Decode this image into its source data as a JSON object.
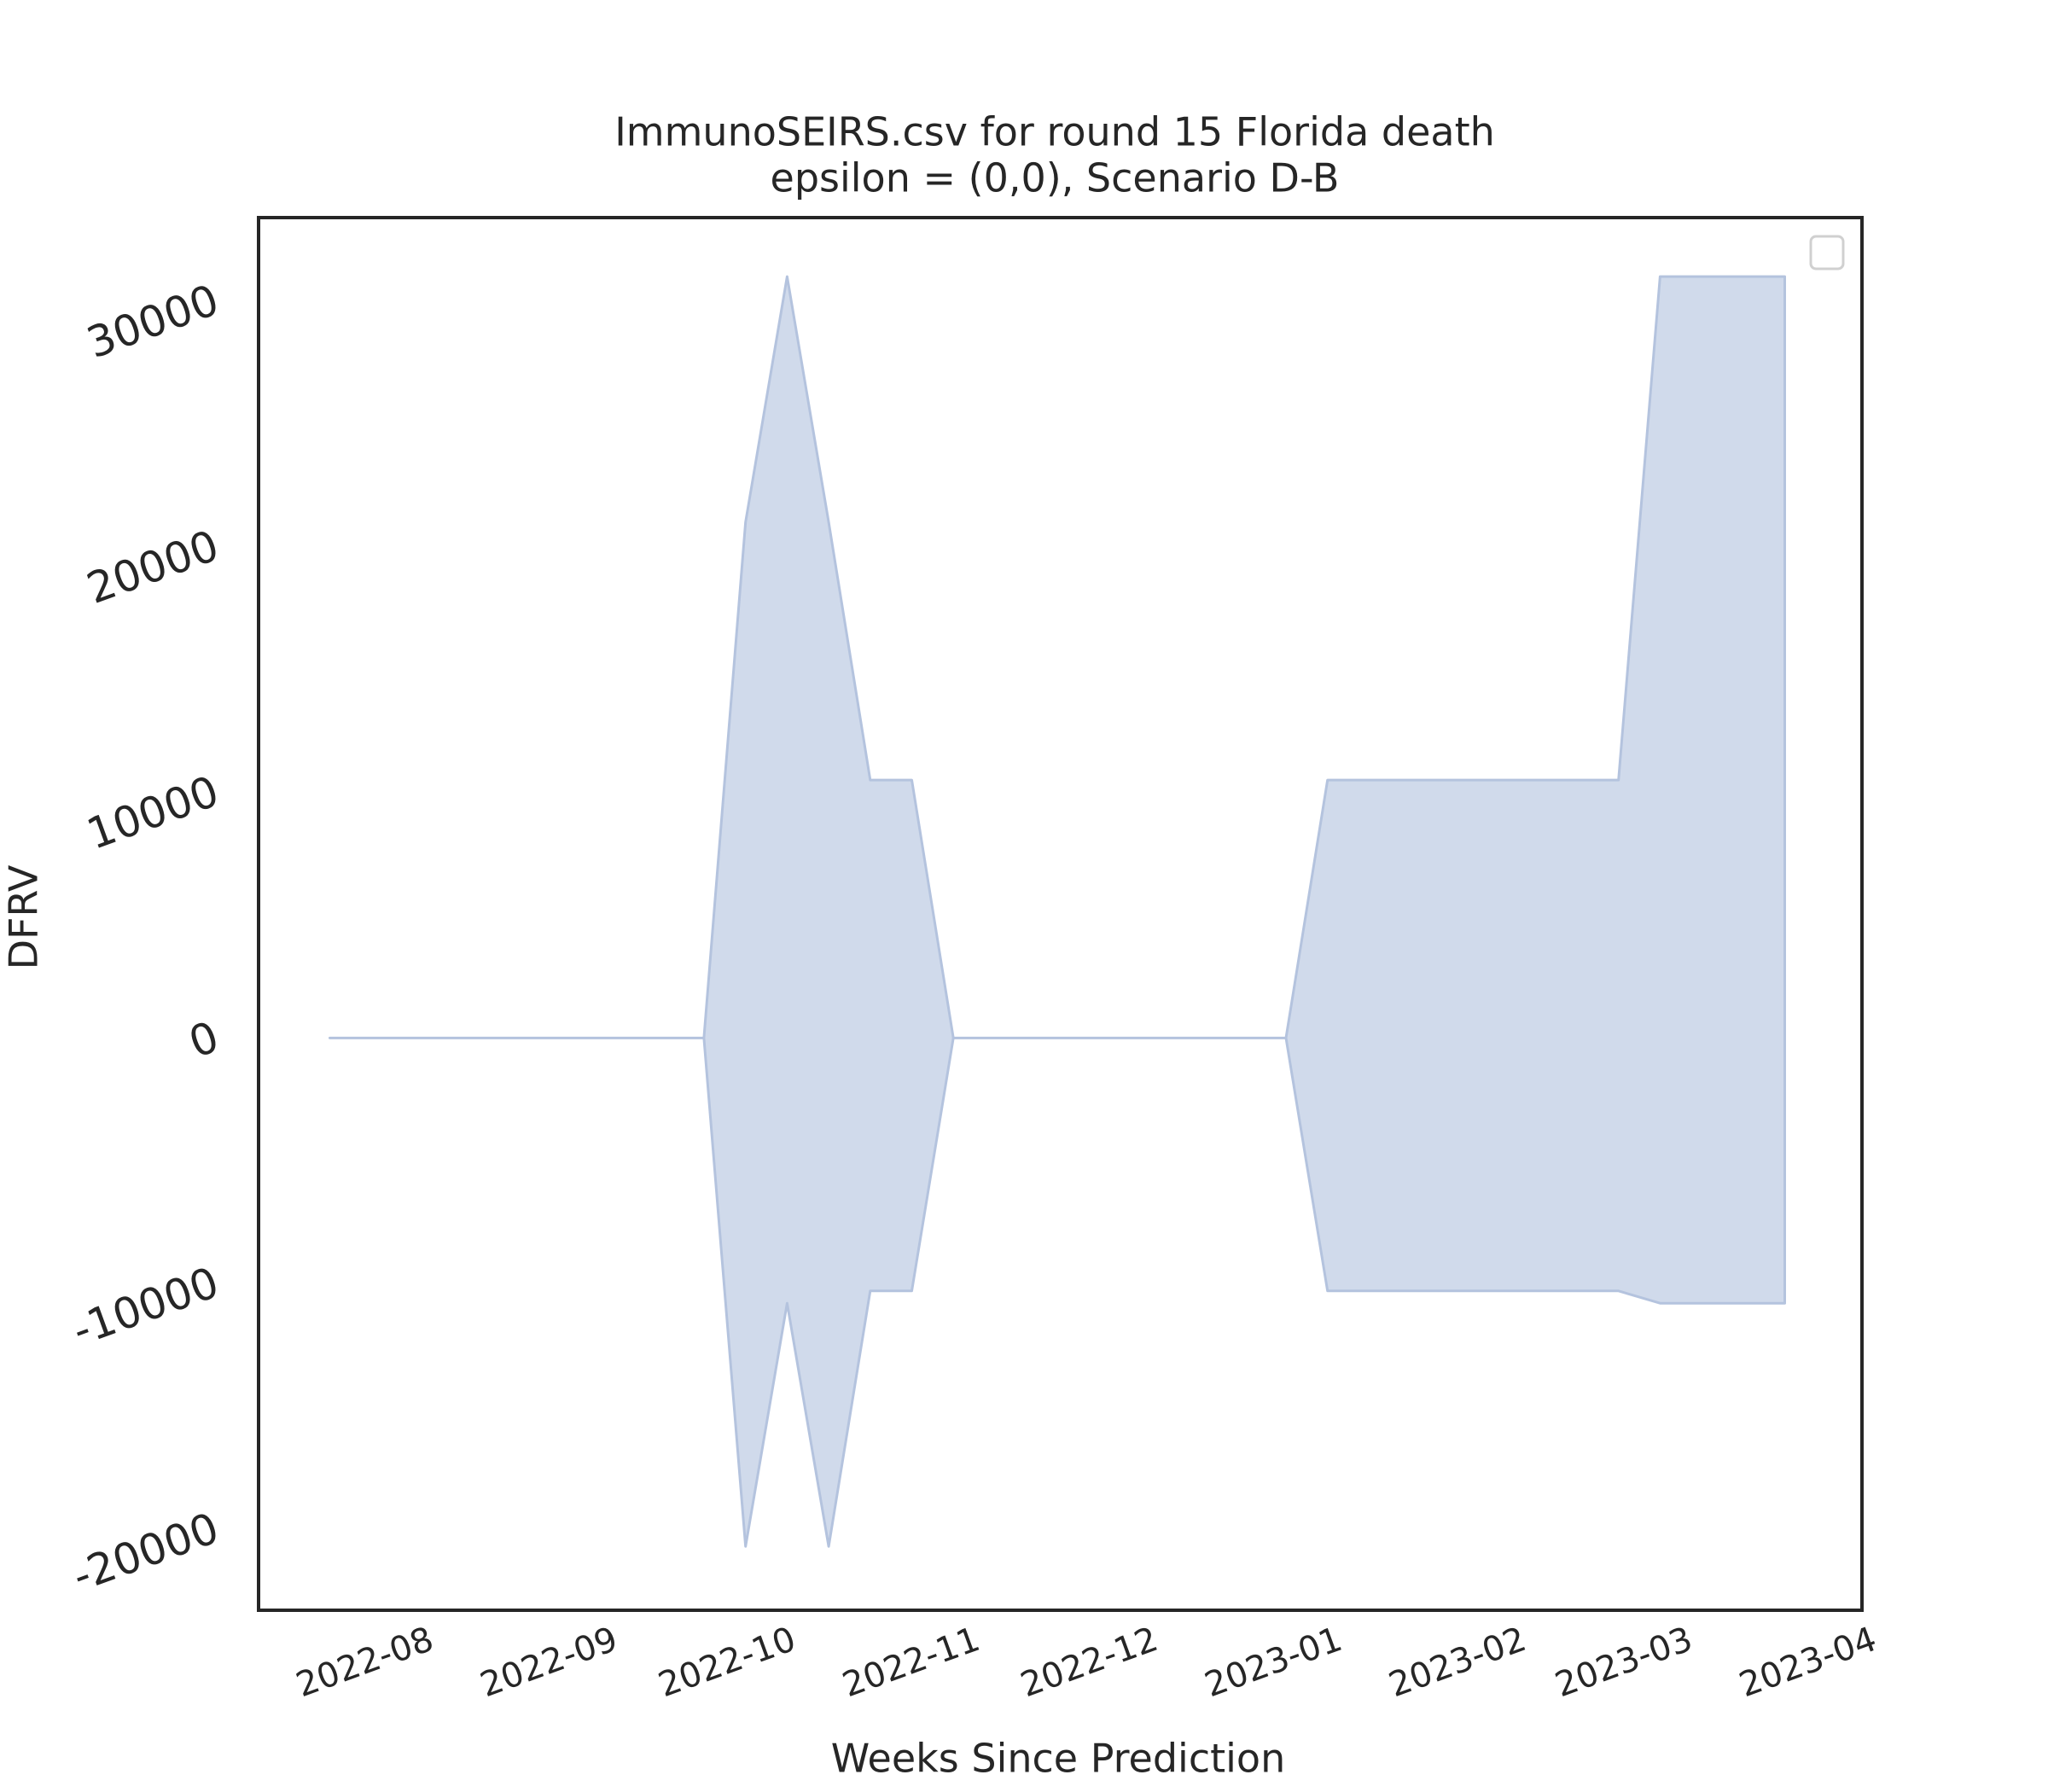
{
  "chart_data": {
    "type": "band",
    "title": "ImmunoSEIRS.csv for round 15 Florida death",
    "subtitle": "epsilon = (0,0), Scenario D-B",
    "x_label": "Weeks Since Prediction",
    "y_label": "DFRV",
    "x": [
      "2022-07-26",
      "2022-08-02",
      "2022-08-09",
      "2022-08-16",
      "2022-08-23",
      "2022-08-30",
      "2022-09-06",
      "2022-09-13",
      "2022-09-20",
      "2022-09-27",
      "2022-10-04",
      "2022-10-11",
      "2022-10-18",
      "2022-10-25",
      "2022-11-01",
      "2022-11-08",
      "2022-11-15",
      "2022-11-22",
      "2022-11-29",
      "2022-12-06",
      "2022-12-13",
      "2022-12-20",
      "2022-12-27",
      "2023-01-03",
      "2023-01-10",
      "2023-01-17",
      "2023-01-24",
      "2023-01-31",
      "2023-02-07",
      "2023-02-14",
      "2023-02-21",
      "2023-02-28",
      "2023-03-07",
      "2023-03-14",
      "2023-03-21",
      "2023-03-28"
    ],
    "upper": [
      0,
      0,
      0,
      0,
      0,
      0,
      0,
      0,
      0,
      0,
      21000,
      31000,
      21000,
      10500,
      10500,
      0,
      0,
      0,
      0,
      0,
      0,
      0,
      0,
      0,
      10500,
      10500,
      10500,
      10500,
      10500,
      10500,
      10500,
      10500,
      31000,
      31000,
      31000,
      31000
    ],
    "lower": [
      0,
      0,
      0,
      0,
      0,
      0,
      0,
      0,
      0,
      0,
      -20700,
      -10800,
      -20700,
      -10300,
      -10300,
      0,
      0,
      0,
      0,
      0,
      0,
      0,
      0,
      0,
      -10300,
      -10300,
      -10300,
      -10300,
      -10300,
      -10300,
      -10300,
      -10300,
      -10800,
      -10800,
      -10800,
      -10800
    ],
    "color": "#d0daeb",
    "edge_color": "#b4c3de",
    "xlim": [
      "2022-07-14",
      "2023-04-10"
    ],
    "xticks": [
      "2022-08",
      "2022-09",
      "2022-10",
      "2022-11",
      "2022-12",
      "2023-01",
      "2023-02",
      "2023-03",
      "2023-04"
    ],
    "ylim": [
      -23300,
      33400
    ],
    "yticks": [
      -20000,
      -10000,
      0,
      10000,
      20000,
      30000
    ]
  }
}
